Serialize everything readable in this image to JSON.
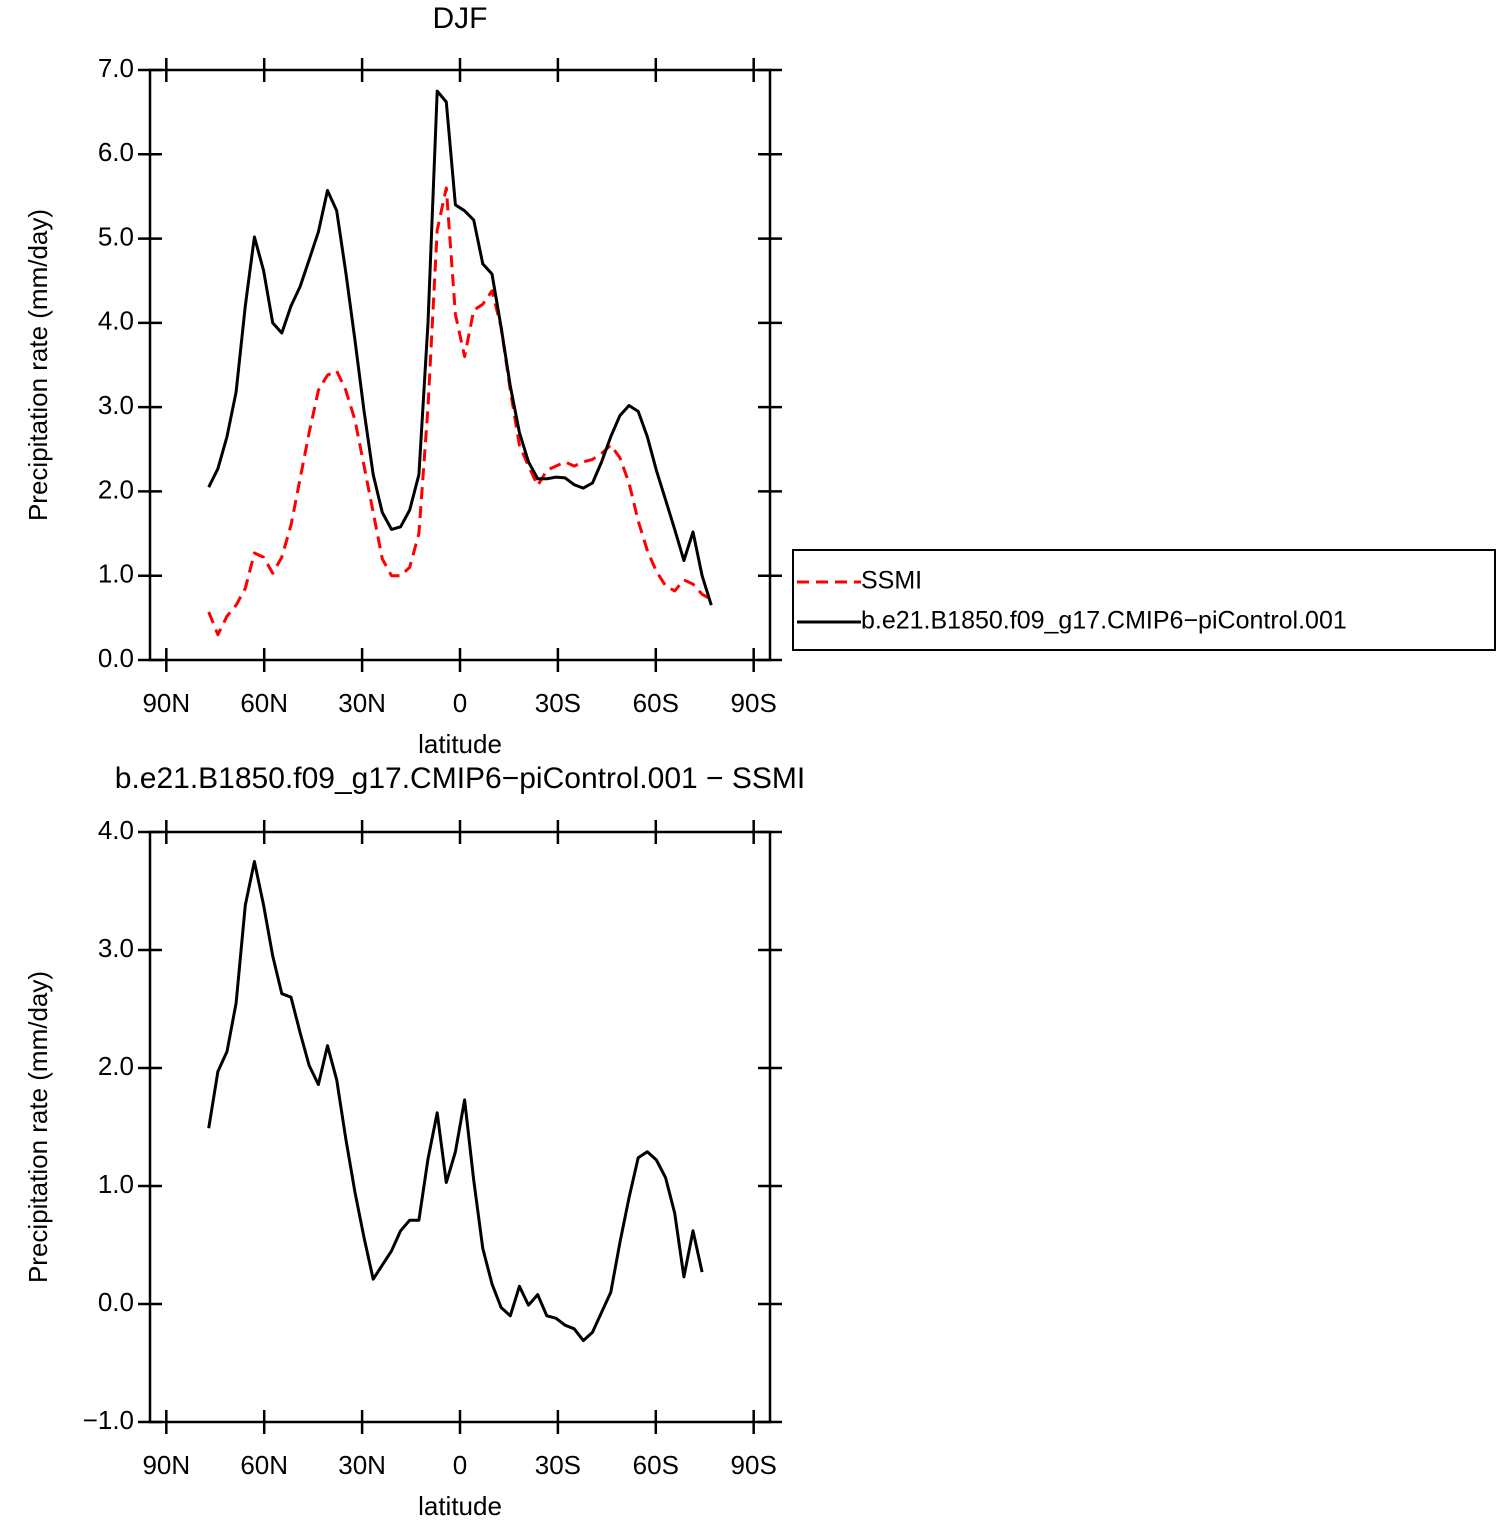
{
  "chart_data": [
    {
      "type": "line",
      "title": "DJF",
      "xlabel": "latitude",
      "ylabel": "Precipitation rate (mm/day)",
      "xlim": [
        -95,
        95
      ],
      "xticks": [
        {
          "value": -90,
          "label": "90N"
        },
        {
          "value": -60,
          "label": "60N"
        },
        {
          "value": -30,
          "label": "30N"
        },
        0,
        {
          "value": 30,
          "label": "30S"
        },
        {
          "value": 60,
          "label": "60S"
        },
        {
          "value": 90,
          "label": "90S"
        }
      ],
      "ylim": [
        0,
        7
      ],
      "yticks": [
        {
          "value": 0,
          "label": "0.0"
        },
        {
          "value": 1,
          "label": "1.0"
        },
        {
          "value": 2,
          "label": "2.0"
        },
        {
          "value": 3,
          "label": "3.0"
        },
        {
          "value": 4,
          "label": "4.0"
        },
        {
          "value": 5,
          "label": "5.0"
        },
        {
          "value": 6,
          "label": "6.0"
        },
        {
          "value": 7,
          "label": "7.0"
        }
      ],
      "legend": "right",
      "x": [
        -77,
        -74.2,
        -71.4,
        -68.6,
        -65.8,
        -63,
        -60.2,
        -57.4,
        -54.6,
        -51.8,
        -49,
        -46.2,
        -43.4,
        -40.6,
        -37.8,
        -35,
        -32.2,
        -29.4,
        -26.6,
        -23.8,
        -21,
        -18.2,
        -15.4,
        -12.6,
        -9.8,
        -7,
        -4.2,
        -1.4,
        1.4,
        4.2,
        7,
        9.8,
        12.6,
        15.4,
        18.2,
        21,
        23.8,
        26.6,
        29.4,
        32.2,
        35,
        37.8,
        40.6,
        43.4,
        46.2,
        49,
        51.8,
        54.6,
        57.4,
        60.2,
        63,
        65.8,
        68.6,
        71.4,
        74.2,
        77
      ],
      "series": [
        {
          "name": "SSMI",
          "color": "#ff0000",
          "dash": "dashed",
          "values": [
            0.57,
            0.3,
            0.52,
            0.65,
            0.85,
            1.27,
            1.22,
            1.03,
            1.22,
            1.6,
            2.15,
            2.7,
            3.2,
            3.38,
            3.43,
            3.2,
            2.85,
            2.3,
            1.75,
            1.2,
            1.0,
            1.0,
            1.1,
            1.5,
            3.0,
            5.1,
            5.6,
            4.1,
            3.6,
            4.15,
            4.22,
            4.38,
            3.95,
            3.2,
            2.55,
            2.3,
            2.07,
            2.25,
            2.3,
            2.35,
            2.3,
            2.35,
            2.38,
            2.45,
            2.55,
            2.4,
            2.1,
            1.65,
            1.3,
            1.05,
            0.88,
            0.82,
            0.95,
            0.9,
            0.78,
            0.72
          ]
        },
        {
          "name": "b.e21.B1850.f09_g17.CMIP6−piControl.001",
          "color": "#000000",
          "dash": "solid",
          "values": [
            2.05,
            2.27,
            2.65,
            3.18,
            4.2,
            5.02,
            4.62,
            4.0,
            3.88,
            4.2,
            4.43,
            4.75,
            5.08,
            5.57,
            5.33,
            4.6,
            3.8,
            2.95,
            2.2,
            1.75,
            1.55,
            1.58,
            1.78,
            2.2,
            4.0,
            6.75,
            6.62,
            5.4,
            5.33,
            5.22,
            4.7,
            4.58,
            3.95,
            3.25,
            2.7,
            2.35,
            2.15,
            2.15,
            2.17,
            2.16,
            2.08,
            2.04,
            2.1,
            2.35,
            2.65,
            2.9,
            3.02,
            2.95,
            2.65,
            2.25,
            1.9,
            1.55,
            1.18,
            1.52,
            1.0,
            0.65
          ]
        }
      ]
    },
    {
      "type": "line",
      "title": "b.e21.B1850.f09_g17.CMIP6−piControl.001 − SSMI",
      "xlabel": "latitude",
      "ylabel": "Precipitation rate (mm/day)",
      "xlim": [
        -95,
        95
      ],
      "xticks": [
        {
          "value": -90,
          "label": "90N"
        },
        {
          "value": -60,
          "label": "60N"
        },
        {
          "value": -30,
          "label": "30N"
        },
        0,
        {
          "value": 30,
          "label": "30S"
        },
        {
          "value": 60,
          "label": "60S"
        },
        {
          "value": 90,
          "label": "90S"
        }
      ],
      "ylim": [
        -1,
        4
      ],
      "yticks": [
        {
          "value": -1,
          "label": "−1.0"
        },
        {
          "value": 0,
          "label": "0.0"
        },
        {
          "value": 1,
          "label": "1.0"
        },
        {
          "value": 2,
          "label": "2.0"
        },
        {
          "value": 3,
          "label": "3.0"
        },
        {
          "value": 4,
          "label": "4.0"
        }
      ],
      "x": [
        -77,
        -74.2,
        -71.4,
        -68.6,
        -65.8,
        -63,
        -60.2,
        -57.4,
        -54.6,
        -51.8,
        -49,
        -46.2,
        -43.4,
        -40.6,
        -37.8,
        -35,
        -32.2,
        -29.4,
        -26.6,
        -23.8,
        -21,
        -18.2,
        -15.4,
        -12.6,
        -9.8,
        -7,
        -4.2,
        -1.4,
        1.4,
        4.2,
        7,
        9.8,
        12.6,
        15.4,
        18.2,
        21,
        23.8,
        26.6,
        29.4,
        32.2,
        35,
        37.8,
        40.6,
        43.4,
        46.2,
        49,
        51.8,
        54.6,
        57.4,
        60.2,
        63,
        65.8,
        68.6,
        71.4,
        74.2,
        77
      ],
      "series": [
        {
          "color": "#000000",
          "dash": "solid",
          "values": [
            1.49,
            1.97,
            2.14,
            2.55,
            3.38,
            3.75,
            3.38,
            2.95,
            2.63,
            2.6,
            2.3,
            2.02,
            1.86,
            2.19,
            1.9,
            1.4,
            0.95,
            0.56,
            0.21,
            0.33,
            0.45,
            0.62,
            0.71,
            0.71,
            1.23,
            1.62,
            1.03,
            1.29,
            1.73,
            1.05,
            0.47,
            0.17,
            -0.03,
            -0.1,
            0.15,
            -0.01,
            0.08,
            -0.1,
            -0.12,
            -0.18,
            -0.21,
            -0.31,
            -0.24,
            -0.07,
            0.1,
            0.52,
            0.9,
            1.24,
            1.29,
            1.22,
            1.07,
            0.77,
            0.23,
            0.62,
            0.27,
            null
          ]
        }
      ]
    }
  ]
}
